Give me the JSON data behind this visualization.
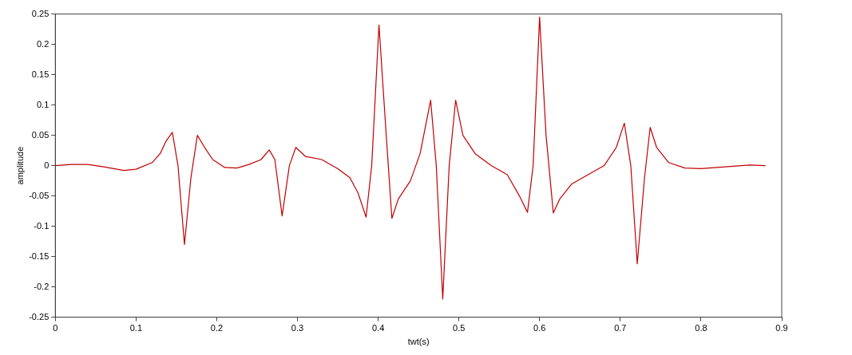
{
  "chart_data": {
    "type": "line",
    "xlabel": "twt(s)",
    "ylabel": "amplitude",
    "x": [
      0,
      0.02,
      0.04,
      0.06,
      0.085,
      0.1,
      0.12,
      0.13,
      0.137,
      0.145,
      0.152,
      0.16,
      0.168,
      0.176,
      0.185,
      0.195,
      0.21,
      0.225,
      0.24,
      0.255,
      0.265,
      0.272,
      0.281,
      0.29,
      0.298,
      0.31,
      0.33,
      0.35,
      0.365,
      0.375,
      0.385,
      0.392,
      0.401,
      0.41,
      0.417,
      0.425,
      0.44,
      0.452,
      0.465,
      0.472,
      0.48,
      0.488,
      0.496,
      0.505,
      0.52,
      0.54,
      0.56,
      0.575,
      0.585,
      0.592,
      0.6,
      0.608,
      0.617,
      0.625,
      0.64,
      0.66,
      0.68,
      0.695,
      0.705,
      0.713,
      0.721,
      0.73,
      0.737,
      0.745,
      0.76,
      0.78,
      0.8,
      0.83,
      0.86,
      0.88
    ],
    "series": [
      {
        "color": "#c00000",
        "values": [
          0,
          0.002,
          0.002,
          -0.002,
          -0.008,
          -0.006,
          0.005,
          0.02,
          0.04,
          0.055,
          0,
          -0.13,
          -0.02,
          0.05,
          0.03,
          0.01,
          -0.003,
          -0.004,
          0.002,
          0.01,
          0.026,
          0.01,
          -0.083,
          0,
          0.03,
          0.015,
          0.01,
          -0.005,
          -0.02,
          -0.045,
          -0.085,
          0,
          0.232,
          0.05,
          -0.087,
          -0.055,
          -0.025,
          0.02,
          0.108,
          0,
          -0.22,
          0,
          0.108,
          0.05,
          0.02,
          0,
          -0.015,
          -0.05,
          -0.077,
          0,
          0.245,
          0.05,
          -0.078,
          -0.055,
          -0.03,
          -0.015,
          0,
          0.03,
          0.07,
          0,
          -0.162,
          -0.02,
          0.063,
          0.03,
          0.005,
          -0.004,
          -0.005,
          -0.002,
          0.001,
          0
        ]
      }
    ],
    "xlim": [
      0,
      0.9
    ],
    "xticks": [
      0,
      0.1,
      0.2,
      0.3,
      0.4,
      0.5,
      0.6,
      0.7,
      0.8,
      0.9
    ],
    "ylim": [
      -0.25,
      0.25
    ],
    "yticks": [
      -0.25,
      -0.2,
      -0.15,
      -0.1,
      -0.05,
      0,
      0.05,
      0.1,
      0.15,
      0.2,
      0.25
    ],
    "grid": false,
    "legend": false,
    "marker": "none",
    "line_style": "solid"
  }
}
